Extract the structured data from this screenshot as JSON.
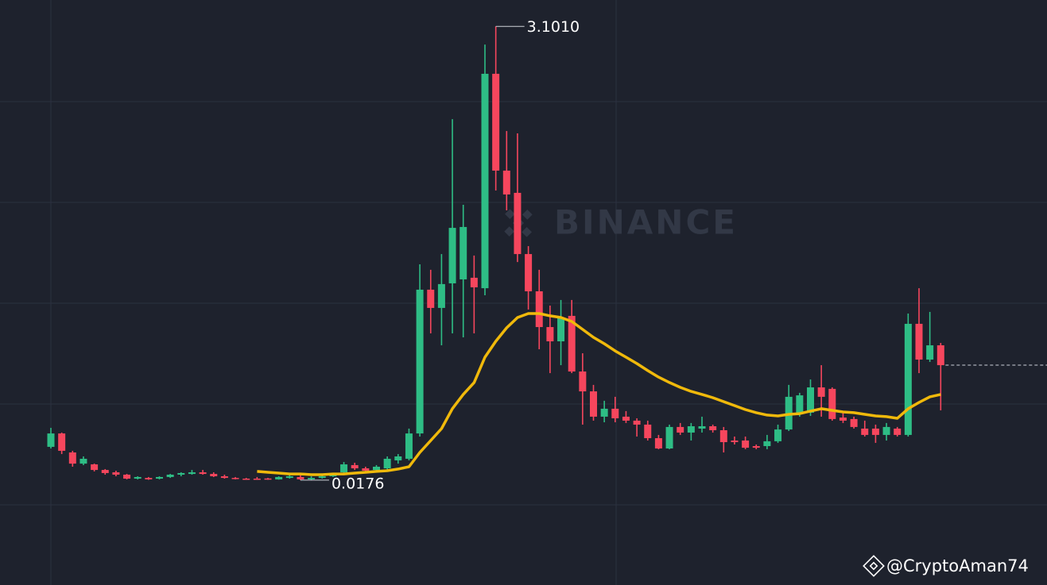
{
  "chart_data": {
    "type": "candlestick",
    "watermark": "BINANCE",
    "credit": "@CryptoAman74",
    "max_label": "3.1010",
    "min_label": "0.0176",
    "up_color": "#2ebd85",
    "down_color": "#f6465d",
    "ylim": [
      -0.15,
      3.2804
    ],
    "open": [
      0.244,
      0.335,
      0.206,
      0.13,
      0.125,
      0.087,
      0.071,
      0.055,
      0.028,
      0.033,
      0.028,
      0.039,
      0.055,
      0.06,
      0.071,
      0.06,
      0.044,
      0.033,
      0.028,
      0.028,
      0.029,
      0.023,
      0.033,
      0.039,
      0.023,
      0.033,
      0.044,
      0.071,
      0.12,
      0.098,
      0.087,
      0.098,
      0.152,
      0.163,
      0.335,
      1.312,
      1.188,
      1.355,
      1.382,
      1.393,
      1.322,
      2.779,
      2.121,
      1.97,
      1.554,
      1.301,
      1.058,
      0.961,
      1.134,
      0.756,
      0.621,
      0.449,
      0.503,
      0.449,
      0.422,
      0.395,
      0.303,
      0.233,
      0.379,
      0.341,
      0.368,
      0.384,
      0.357,
      0.287,
      0.287,
      0.249,
      0.249,
      0.282,
      0.362,
      0.476,
      0.476,
      0.648,
      0.638,
      0.443,
      0.433,
      0.368,
      0.368,
      0.325,
      0.368,
      0.325,
      1.08,
      0.837,
      0.934
    ],
    "high": [
      0.373,
      0.341,
      0.217,
      0.179,
      0.13,
      0.093,
      0.082,
      0.06,
      0.044,
      0.039,
      0.044,
      0.06,
      0.071,
      0.087,
      0.087,
      0.071,
      0.055,
      0.039,
      0.033,
      0.039,
      0.033,
      0.044,
      0.055,
      0.055,
      0.044,
      0.055,
      0.066,
      0.141,
      0.136,
      0.109,
      0.12,
      0.179,
      0.195,
      0.368,
      1.484,
      1.447,
      1.554,
      2.471,
      1.889,
      1.544,
      2.978,
      3.101,
      2.39,
      2.374,
      1.608,
      1.447,
      1.204,
      1.242,
      1.242,
      0.88,
      0.665,
      0.557,
      0.584,
      0.487,
      0.438,
      0.422,
      0.325,
      0.395,
      0.406,
      0.406,
      0.449,
      0.395,
      0.379,
      0.314,
      0.314,
      0.26,
      0.325,
      0.395,
      0.665,
      0.611,
      0.702,
      0.799,
      0.648,
      0.476,
      0.449,
      0.422,
      0.395,
      0.406,
      0.379,
      1.15,
      1.322,
      1.161,
      0.95
    ],
    "low": [
      0.233,
      0.195,
      0.109,
      0.12,
      0.077,
      0.055,
      0.044,
      0.023,
      0.023,
      0.02,
      0.023,
      0.033,
      0.044,
      0.055,
      0.055,
      0.039,
      0.028,
      0.023,
      0.021,
      0.021,
      0.02,
      0.021,
      0.028,
      0.0176,
      0.019,
      0.028,
      0.039,
      0.06,
      0.087,
      0.077,
      0.077,
      0.087,
      0.13,
      0.152,
      0.314,
      1.015,
      0.934,
      1.015,
      0.988,
      1.015,
      1.274,
      1.986,
      1.851,
      1.5,
      1.177,
      0.907,
      0.745,
      0.799,
      0.745,
      0.395,
      0.422,
      0.411,
      0.411,
      0.406,
      0.314,
      0.287,
      0.228,
      0.228,
      0.325,
      0.287,
      0.341,
      0.341,
      0.206,
      0.26,
      0.228,
      0.228,
      0.228,
      0.271,
      0.352,
      0.449,
      0.454,
      0.449,
      0.422,
      0.406,
      0.368,
      0.314,
      0.271,
      0.287,
      0.314,
      0.314,
      0.745,
      0.821,
      0.492
    ],
    "close": [
      0.335,
      0.217,
      0.13,
      0.163,
      0.087,
      0.066,
      0.055,
      0.028,
      0.039,
      0.023,
      0.039,
      0.055,
      0.066,
      0.071,
      0.06,
      0.044,
      0.033,
      0.028,
      0.023,
      0.024,
      0.022,
      0.039,
      0.044,
      0.023,
      0.033,
      0.044,
      0.06,
      0.125,
      0.098,
      0.082,
      0.109,
      0.163,
      0.179,
      0.335,
      1.312,
      1.188,
      1.35,
      1.732,
      1.738,
      1.328,
      2.779,
      2.121,
      1.959,
      1.554,
      1.301,
      1.058,
      0.961,
      1.123,
      0.756,
      0.621,
      0.449,
      0.503,
      0.438,
      0.422,
      0.395,
      0.303,
      0.233,
      0.379,
      0.341,
      0.384,
      0.384,
      0.357,
      0.276,
      0.276,
      0.238,
      0.238,
      0.282,
      0.362,
      0.584,
      0.594,
      0.648,
      0.584,
      0.433,
      0.422,
      0.379,
      0.325,
      0.325,
      0.379,
      0.325,
      1.08,
      0.837,
      0.934,
      0.799
    ],
    "ma": {
      "color": "#f0b90b",
      "values": [
        null,
        null,
        null,
        null,
        null,
        null,
        null,
        null,
        null,
        null,
        null,
        null,
        null,
        null,
        null,
        null,
        null,
        null,
        null,
        0.077,
        0.071,
        0.066,
        0.06,
        0.06,
        0.055,
        0.055,
        0.06,
        0.06,
        0.066,
        0.071,
        0.077,
        0.082,
        0.093,
        0.109,
        0.206,
        0.287,
        0.368,
        0.503,
        0.6,
        0.681,
        0.853,
        0.961,
        1.053,
        1.123,
        1.15,
        1.15,
        1.134,
        1.123,
        1.096,
        1.042,
        0.988,
        0.945,
        0.896,
        0.853,
        0.81,
        0.762,
        0.718,
        0.681,
        0.648,
        0.621,
        0.6,
        0.578,
        0.551,
        0.524,
        0.497,
        0.476,
        0.46,
        0.454,
        0.465,
        0.47,
        0.487,
        0.503,
        0.492,
        0.481,
        0.476,
        0.465,
        0.454,
        0.449,
        0.438,
        0.503,
        0.546,
        0.584,
        0.6
      ]
    }
  }
}
